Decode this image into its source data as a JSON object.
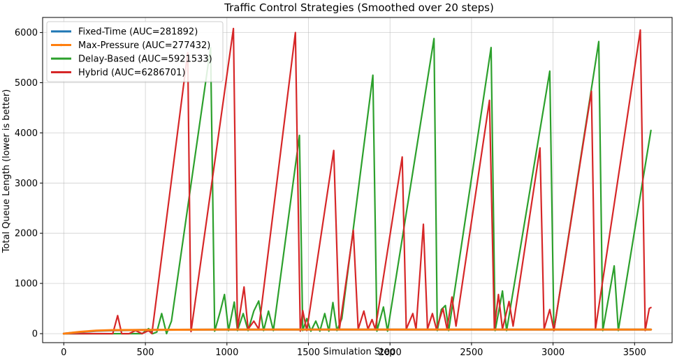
{
  "chart_data": {
    "type": "line",
    "title": "Traffic Control Strategies (Smoothed over 20 steps)",
    "xlabel": "Simulation Step",
    "ylabel": "Total Queue Length (lower is better)",
    "xlim": [
      -130,
      3730
    ],
    "ylim": [
      -180,
      6300
    ],
    "xticks": [
      0,
      500,
      1000,
      1500,
      2000,
      2500,
      3000,
      3500
    ],
    "yticks": [
      0,
      1000,
      2000,
      3000,
      4000,
      5000,
      6000
    ],
    "grid": true,
    "legend": "top-left",
    "series": [
      {
        "name": "Fixed-Time (AUC=281892)",
        "color": "#1f77b4",
        "points": [
          [
            0,
            0
          ],
          [
            100,
            30
          ],
          [
            200,
            55
          ],
          [
            300,
            65
          ],
          [
            500,
            75
          ],
          [
            1000,
            80
          ],
          [
            2000,
            80
          ],
          [
            3000,
            80
          ],
          [
            3600,
            80
          ]
        ]
      },
      {
        "name": "Max-Pressure (AUC=277432)",
        "color": "#ff7f0e",
        "points": [
          [
            0,
            0
          ],
          [
            100,
            35
          ],
          [
            200,
            60
          ],
          [
            300,
            70
          ],
          [
            500,
            75
          ],
          [
            1000,
            80
          ],
          [
            2000,
            80
          ],
          [
            3000,
            80
          ],
          [
            3600,
            80
          ]
        ]
      },
      {
        "name": "Delay-Based (AUC=5921533)",
        "color": "#2ca02c",
        "points": [
          [
            0,
            0
          ],
          [
            480,
            0
          ],
          [
            520,
            100
          ],
          [
            545,
            0
          ],
          [
            570,
            30
          ],
          [
            600,
            400
          ],
          [
            630,
            0
          ],
          [
            660,
            250
          ],
          [
            900,
            5700
          ],
          [
            925,
            50
          ],
          [
            960,
            450
          ],
          [
            985,
            780
          ],
          [
            1010,
            60
          ],
          [
            1045,
            630
          ],
          [
            1065,
            60
          ],
          [
            1100,
            400
          ],
          [
            1130,
            60
          ],
          [
            1165,
            450
          ],
          [
            1195,
            650
          ],
          [
            1225,
            60
          ],
          [
            1255,
            450
          ],
          [
            1285,
            60
          ],
          [
            1445,
            3950
          ],
          [
            1465,
            60
          ],
          [
            1490,
            300
          ],
          [
            1515,
            50
          ],
          [
            1545,
            250
          ],
          [
            1570,
            50
          ],
          [
            1600,
            400
          ],
          [
            1625,
            50
          ],
          [
            1650,
            620
          ],
          [
            1675,
            60
          ],
          [
            1705,
            300
          ],
          [
            1895,
            5150
          ],
          [
            1920,
            50
          ],
          [
            1960,
            530
          ],
          [
            1985,
            50
          ],
          [
            2270,
            5880
          ],
          [
            2290,
            60
          ],
          [
            2315,
            480
          ],
          [
            2340,
            560
          ],
          [
            2360,
            60
          ],
          [
            2620,
            5700
          ],
          [
            2645,
            60
          ],
          [
            2690,
            850
          ],
          [
            2715,
            60
          ],
          [
            2980,
            5230
          ],
          [
            3005,
            60
          ],
          [
            3280,
            5820
          ],
          [
            3305,
            60
          ],
          [
            3375,
            1350
          ],
          [
            3400,
            60
          ],
          [
            3600,
            4050
          ]
        ]
      },
      {
        "name": "Hybrid (AUC=6286701)",
        "color": "#d62728",
        "points": [
          [
            0,
            0
          ],
          [
            300,
            0
          ],
          [
            330,
            360
          ],
          [
            355,
            0
          ],
          [
            400,
            0
          ],
          [
            440,
            60
          ],
          [
            480,
            0
          ],
          [
            520,
            60
          ],
          [
            540,
            0
          ],
          [
            760,
            5600
          ],
          [
            780,
            40
          ],
          [
            1040,
            6080
          ],
          [
            1065,
            90
          ],
          [
            1105,
            930
          ],
          [
            1130,
            90
          ],
          [
            1165,
            250
          ],
          [
            1195,
            90
          ],
          [
            1420,
            6000
          ],
          [
            1450,
            50
          ],
          [
            1465,
            460
          ],
          [
            1490,
            60
          ],
          [
            1655,
            3650
          ],
          [
            1690,
            90
          ],
          [
            1775,
            2060
          ],
          [
            1805,
            90
          ],
          [
            1840,
            450
          ],
          [
            1865,
            90
          ],
          [
            1890,
            280
          ],
          [
            1910,
            90
          ],
          [
            2075,
            3520
          ],
          [
            2100,
            90
          ],
          [
            2140,
            400
          ],
          [
            2160,
            90
          ],
          [
            2205,
            2180
          ],
          [
            2230,
            90
          ],
          [
            2260,
            400
          ],
          [
            2285,
            90
          ],
          [
            2325,
            500
          ],
          [
            2350,
            90
          ],
          [
            2380,
            730
          ],
          [
            2405,
            150
          ],
          [
            2610,
            4650
          ],
          [
            2640,
            90
          ],
          [
            2665,
            780
          ],
          [
            2690,
            90
          ],
          [
            2730,
            640
          ],
          [
            2755,
            150
          ],
          [
            2920,
            3700
          ],
          [
            2945,
            90
          ],
          [
            2980,
            480
          ],
          [
            3005,
            60
          ],
          [
            3235,
            4830
          ],
          [
            3260,
            90
          ],
          [
            3535,
            6050
          ],
          [
            3565,
            60
          ],
          [
            3590,
            500
          ],
          [
            3600,
            520
          ]
        ]
      }
    ]
  }
}
